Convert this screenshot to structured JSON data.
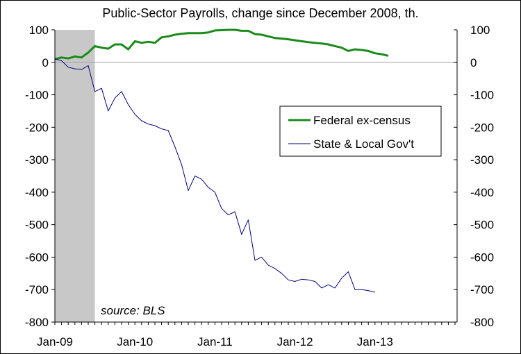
{
  "chart_data": {
    "type": "line",
    "title": "Public-Sector Payrolls, change since December 2008, th.",
    "xlabel": "",
    "ylabel": "",
    "ylim": [
      -800,
      100
    ],
    "y_ticks": [
      100,
      0,
      -100,
      -200,
      -300,
      -400,
      -500,
      -600,
      -700,
      -800
    ],
    "x_tick_labels": [
      "Jan-09",
      "Jan-10",
      "Jan-11",
      "Jan-12",
      "Jan-13"
    ],
    "x_tick_months": [
      0,
      12,
      24,
      36,
      48
    ],
    "x_start": "2008-12",
    "recession_shading": {
      "from": "2008-12",
      "to": "2009-06",
      "color": "#c8c8c8"
    },
    "annotation": "source: BLS",
    "legend_position": "upper-right",
    "grid": false,
    "series": [
      {
        "name": "Federal ex-census",
        "color": "#1a8a1a",
        "line_width": "thick",
        "values": [
          10,
          15,
          12,
          18,
          15,
          30,
          50,
          45,
          42,
          55,
          55,
          40,
          65,
          60,
          63,
          60,
          77,
          80,
          85,
          88,
          90,
          90,
          90,
          92,
          98,
          99,
          100,
          100,
          97,
          97,
          87,
          85,
          80,
          75,
          73,
          71,
          68,
          65,
          62,
          60,
          58,
          55,
          50,
          45,
          35,
          40,
          38,
          35,
          28,
          25,
          20
        ]
      },
      {
        "name": "State & Local Gov't",
        "color": "#00007f",
        "line_width": "thin",
        "values": [
          10,
          5,
          -15,
          -20,
          -22,
          -10,
          -90,
          -80,
          -150,
          -110,
          -90,
          -130,
          -160,
          -180,
          -190,
          -195,
          -205,
          -210,
          -260,
          -315,
          -395,
          -350,
          -360,
          -385,
          -400,
          -450,
          -470,
          -460,
          -530,
          -485,
          -610,
          -600,
          -625,
          -635,
          -650,
          -670,
          -675,
          -668,
          -670,
          -675,
          -695,
          -685,
          -695,
          -665,
          -645,
          -700,
          -700,
          -703,
          -708
        ]
      }
    ]
  }
}
